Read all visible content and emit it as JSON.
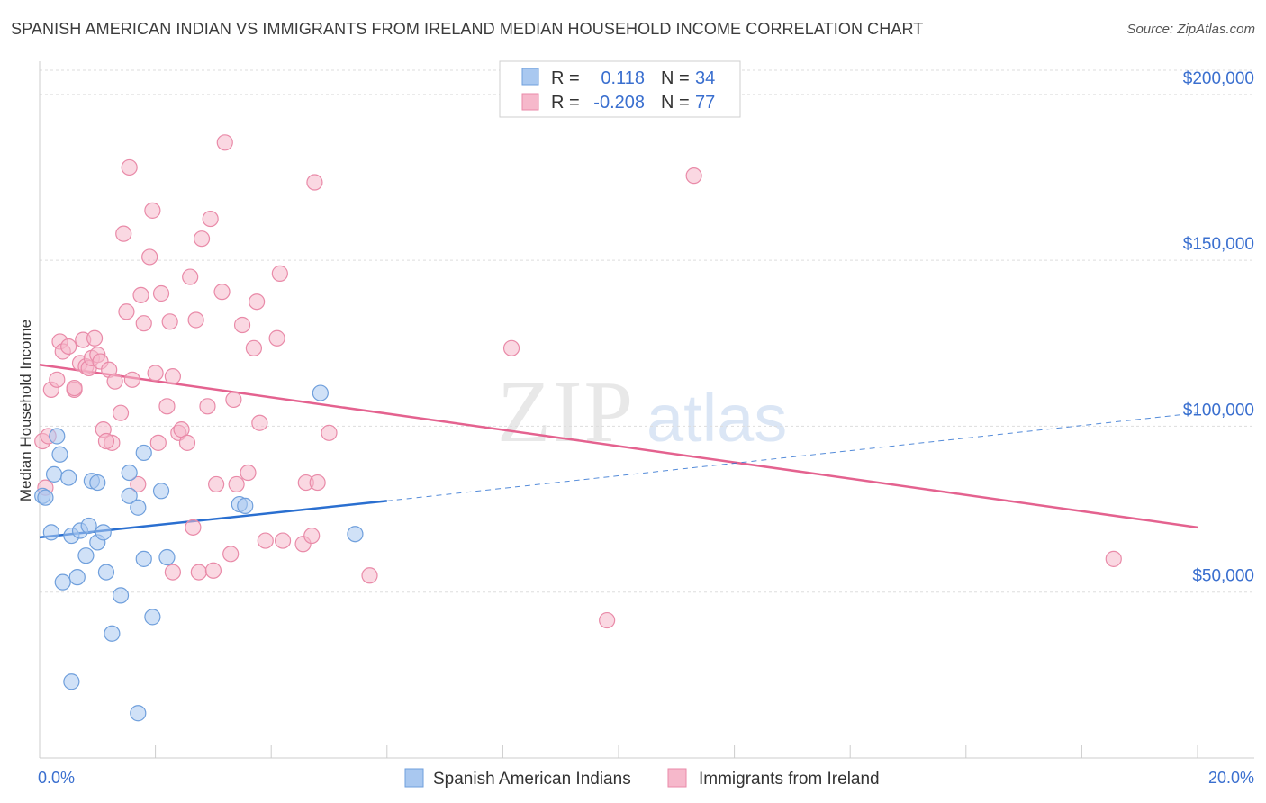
{
  "title": "SPANISH AMERICAN INDIAN VS IMMIGRANTS FROM IRELAND MEDIAN HOUSEHOLD INCOME CORRELATION CHART",
  "source": "Source: ZipAtlas.com",
  "watermark": {
    "zip": "ZIP",
    "atlas": "atlas"
  },
  "colors": {
    "blue_fill": "#a9c8f0",
    "blue_stroke": "#6f9fdc",
    "blue_line": "#2a6fd0",
    "pink_fill": "#f6b8cb",
    "pink_stroke": "#e98aa8",
    "pink_line": "#e4628f",
    "axis_text": "#3a6fcf",
    "grid": "#dddddd"
  },
  "legend_box": {
    "rows": [
      {
        "r_label": "R =",
        "r_value": "0.118",
        "n_label": "N =",
        "n_value": "34",
        "color": "blue"
      },
      {
        "r_label": "R =",
        "r_value": "-0.208",
        "n_label": "N =",
        "n_value": "77",
        "color": "pink"
      }
    ]
  },
  "bottom_legend": [
    {
      "label": "Spanish American Indians",
      "color": "blue"
    },
    {
      "label": "Immigrants from Ireland",
      "color": "pink"
    }
  ],
  "chart_data": {
    "type": "scatter",
    "title": "SPANISH AMERICAN INDIAN VS IMMIGRANTS FROM IRELAND MEDIAN HOUSEHOLD INCOME CORRELATION CHART",
    "xlabel": "",
    "ylabel": "Median Household Income",
    "xlim": [
      0,
      20
    ],
    "ylim": [
      0,
      210000
    ],
    "x_tick_labels": [
      "0.0%",
      "20.0%"
    ],
    "y_ticks": [
      50000,
      100000,
      150000,
      200000
    ],
    "y_tick_labels": [
      "$50,000",
      "$100,000",
      "$150,000",
      "$200,000"
    ],
    "grid": true,
    "legend_position": "top-center",
    "series": [
      {
        "name": "Spanish American Indians",
        "color": "blue",
        "r": 0.118,
        "n": 34,
        "trend": {
          "x": [
            0.0,
            6.0
          ],
          "y": [
            66500,
            77500
          ]
        },
        "trend_extension": {
          "x": [
            6.0,
            20.0
          ],
          "y": [
            77500,
            104000
          ]
        },
        "points": [
          [
            0.05,
            79000
          ],
          [
            0.1,
            78500
          ],
          [
            0.2,
            68000
          ],
          [
            0.25,
            85500
          ],
          [
            0.3,
            97000
          ],
          [
            0.35,
            91500
          ],
          [
            0.4,
            53000
          ],
          [
            0.5,
            84500
          ],
          [
            0.55,
            67000
          ],
          [
            0.65,
            54500
          ],
          [
            0.7,
            68500
          ],
          [
            0.8,
            61000
          ],
          [
            0.85,
            70000
          ],
          [
            0.9,
            83500
          ],
          [
            1.0,
            83000
          ],
          [
            1.0,
            65000
          ],
          [
            1.1,
            68000
          ],
          [
            1.15,
            56000
          ],
          [
            1.25,
            37500
          ],
          [
            1.4,
            49000
          ],
          [
            1.55,
            86000
          ],
          [
            1.55,
            79000
          ],
          [
            1.7,
            75500
          ],
          [
            1.8,
            92000
          ],
          [
            1.8,
            60000
          ],
          [
            1.95,
            42500
          ],
          [
            2.1,
            80500
          ],
          [
            2.2,
            60500
          ],
          [
            3.45,
            76500
          ],
          [
            3.55,
            76000
          ],
          [
            4.85,
            110000
          ],
          [
            5.45,
            67500
          ],
          [
            0.55,
            23000
          ],
          [
            1.7,
            13500
          ]
        ]
      },
      {
        "name": "Immigrants from Ireland",
        "color": "pink",
        "r": -0.208,
        "n": 77,
        "trend": {
          "x": [
            0.0,
            20.0
          ],
          "y": [
            118500,
            69500
          ]
        },
        "points": [
          [
            0.05,
            95500
          ],
          [
            0.1,
            81500
          ],
          [
            0.15,
            97000
          ],
          [
            0.2,
            111000
          ],
          [
            0.3,
            114000
          ],
          [
            0.35,
            125500
          ],
          [
            0.4,
            122500
          ],
          [
            0.5,
            124000
          ],
          [
            0.6,
            111000
          ],
          [
            0.7,
            119000
          ],
          [
            0.75,
            126000
          ],
          [
            0.8,
            118000
          ],
          [
            0.85,
            117500
          ],
          [
            0.9,
            120500
          ],
          [
            0.95,
            126500
          ],
          [
            1.0,
            121500
          ],
          [
            1.05,
            119500
          ],
          [
            1.1,
            99000
          ],
          [
            1.2,
            117000
          ],
          [
            1.25,
            95000
          ],
          [
            1.3,
            113500
          ],
          [
            1.4,
            104000
          ],
          [
            1.45,
            158000
          ],
          [
            1.5,
            134500
          ],
          [
            1.55,
            178000
          ],
          [
            1.6,
            114000
          ],
          [
            1.7,
            82500
          ],
          [
            1.75,
            139500
          ],
          [
            1.8,
            131000
          ],
          [
            1.9,
            151000
          ],
          [
            1.95,
            165000
          ],
          [
            2.0,
            116000
          ],
          [
            2.05,
            95000
          ],
          [
            2.1,
            140000
          ],
          [
            2.2,
            106000
          ],
          [
            2.25,
            131500
          ],
          [
            2.3,
            115000
          ],
          [
            2.4,
            98000
          ],
          [
            2.45,
            99000
          ],
          [
            2.55,
            95000
          ],
          [
            2.6,
            145000
          ],
          [
            2.65,
            69500
          ],
          [
            2.7,
            132000
          ],
          [
            2.75,
            56000
          ],
          [
            2.8,
            156500
          ],
          [
            2.9,
            106000
          ],
          [
            2.95,
            162500
          ],
          [
            3.0,
            56500
          ],
          [
            3.05,
            82500
          ],
          [
            3.15,
            140500
          ],
          [
            3.3,
            61500
          ],
          [
            3.35,
            108000
          ],
          [
            3.4,
            82500
          ],
          [
            3.5,
            130500
          ],
          [
            3.6,
            86000
          ],
          [
            3.7,
            123500
          ],
          [
            3.75,
            137500
          ],
          [
            3.8,
            101000
          ],
          [
            3.9,
            65500
          ],
          [
            4.1,
            126500
          ],
          [
            4.15,
            146000
          ],
          [
            4.2,
            65500
          ],
          [
            4.55,
            64500
          ],
          [
            4.6,
            83000
          ],
          [
            4.7,
            67000
          ],
          [
            4.75,
            173500
          ],
          [
            4.8,
            83000
          ],
          [
            5.0,
            98000
          ],
          [
            3.2,
            185500
          ],
          [
            5.7,
            55000
          ],
          [
            8.15,
            123500
          ],
          [
            9.8,
            41500
          ],
          [
            11.3,
            175500
          ],
          [
            18.55,
            60000
          ],
          [
            1.15,
            95500
          ],
          [
            0.6,
            111500
          ],
          [
            2.3,
            56000
          ]
        ]
      }
    ]
  }
}
